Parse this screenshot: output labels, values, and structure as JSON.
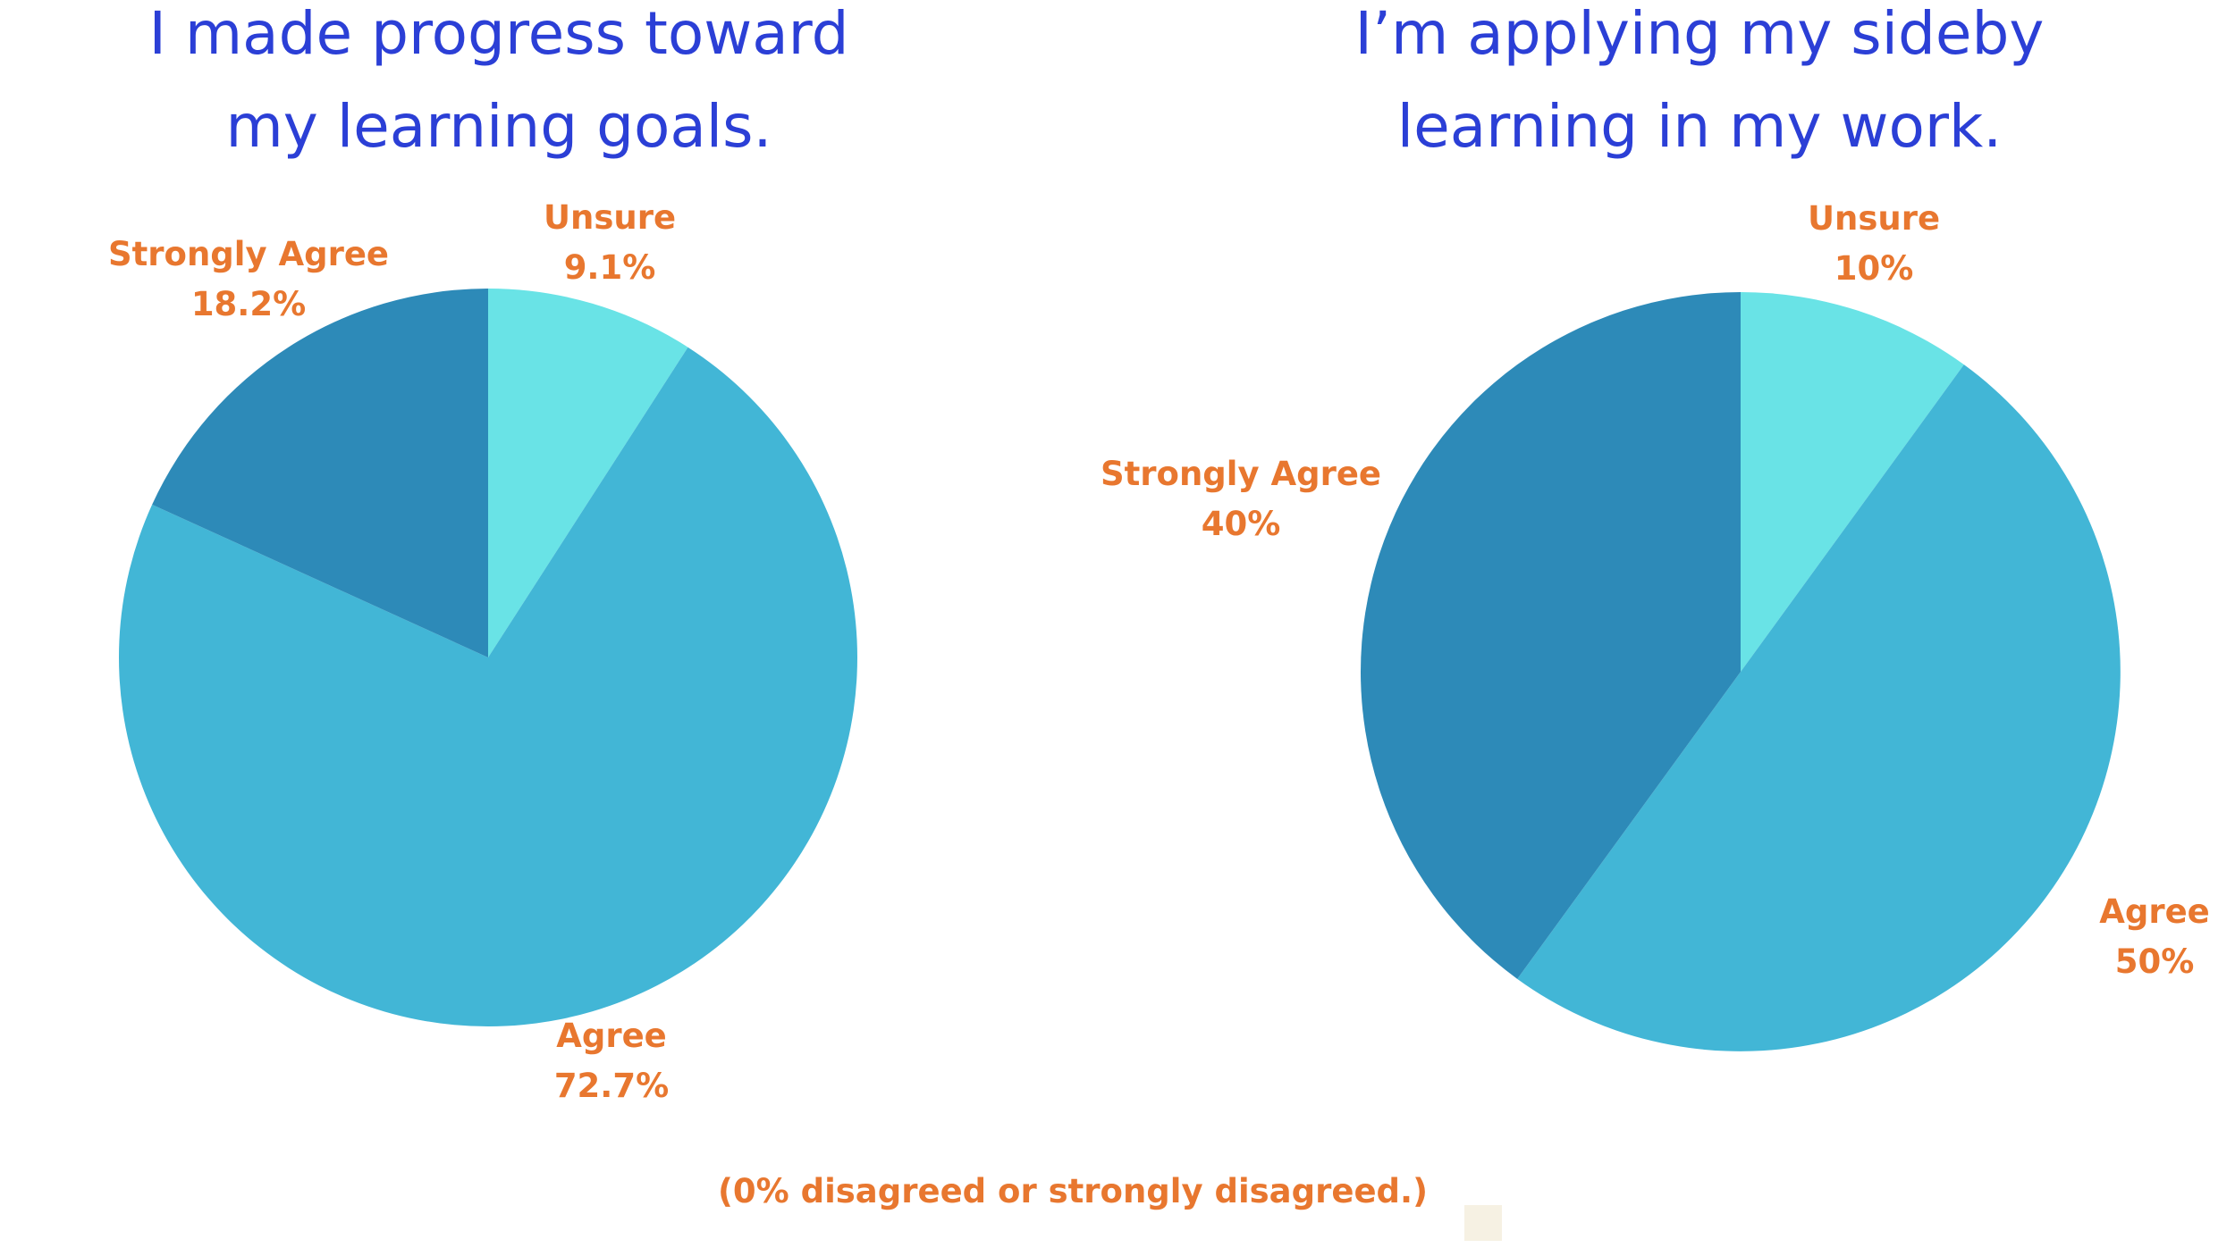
{
  "colors": {
    "title": "#2b3fd6",
    "label": "#e8772f",
    "unsure": "#69e3e6",
    "agree": "#42b6d6",
    "strongly_agree": "#2d8ab8"
  },
  "chart_data": [
    {
      "type": "pie",
      "title_lines": [
        "I made progress toward",
        "my learning goals."
      ],
      "slices": [
        {
          "label": "Unsure",
          "value": 9.1,
          "value_label": "9.1%",
          "color": "#69e3e6"
        },
        {
          "label": "Agree",
          "value": 72.7,
          "value_label": "72.7%",
          "color": "#42b6d6"
        },
        {
          "label": "Strongly Agree",
          "value": 18.2,
          "value_label": "18.2%",
          "color": "#2d8ab8"
        }
      ]
    },
    {
      "type": "pie",
      "title_lines": [
        "I’m applying my sideby",
        "learning in my work."
      ],
      "slices": [
        {
          "label": "Unsure",
          "value": 10,
          "value_label": "10%",
          "color": "#69e3e6"
        },
        {
          "label": "Agree",
          "value": 50,
          "value_label": "50%",
          "color": "#42b6d6"
        },
        {
          "label": "Strongly Agree",
          "value": 40,
          "value_label": "40%",
          "color": "#2d8ab8"
        }
      ]
    }
  ],
  "footnote": "(0% disagreed or strongly disagreed.)"
}
